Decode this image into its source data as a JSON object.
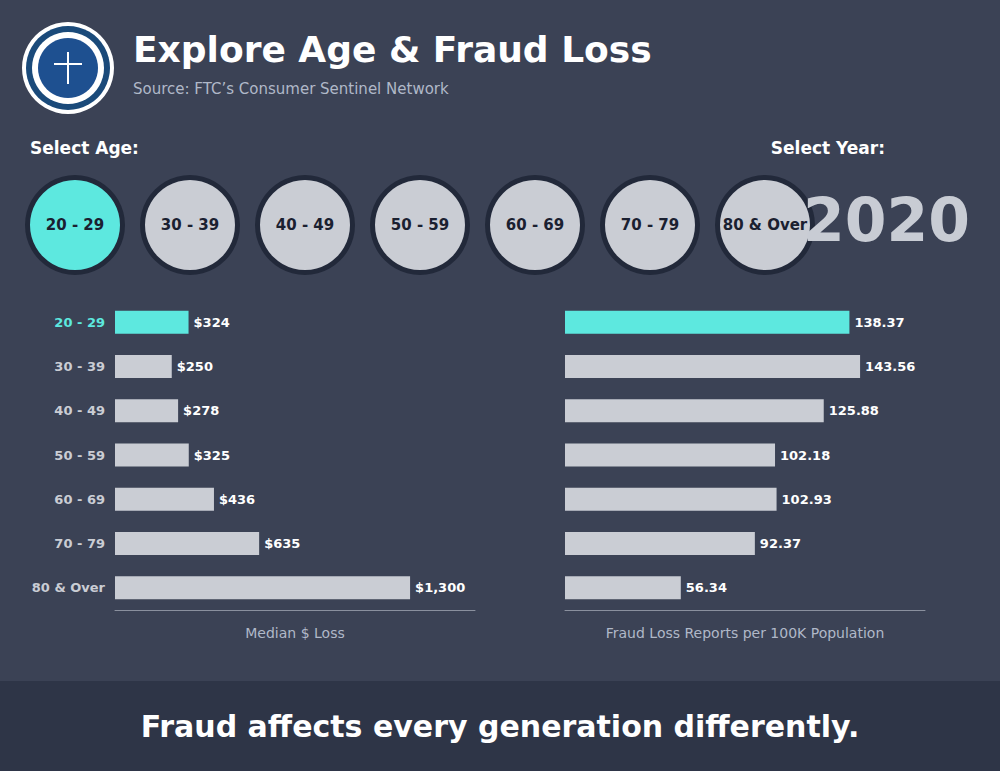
{
  "chart_data": [
    {
      "type": "bar",
      "title": "Explore Age & Fraud Loss",
      "subtitle": "Source: FTC’s Consumer Sentinel Network",
      "annotations": [
        "Select Age:",
        "Select Year:",
        "2020",
        "Fraud affects every generation differently."
      ],
      "orientation": "horizontal",
      "categories": [
        "20 - 29",
        "30 - 39",
        "40 - 49",
        "50 - 59",
        "60 - 69",
        "70 - 79",
        "80 & Over"
      ],
      "values": [
        324,
        250,
        278,
        325,
        436,
        635,
        1300
      ],
      "value_labels": [
        "$324",
        "$250",
        "$278",
        "$325",
        "$436",
        "$635",
        "$1,300"
      ],
      "colors": [
        "#5de8df",
        "#cacdd4",
        "#cacdd4",
        "#cacdd4",
        "#cacdd4",
        "#cacdd4",
        "#cacdd4"
      ],
      "xlabel": "Median $ Loss",
      "xlim": [
        0,
        1586
      ],
      "grid": false,
      "data_labels": true,
      "tick_labels": "y"
    },
    {
      "type": "bar",
      "orientation": "horizontal",
      "categories": [
        "20 - 29",
        "30 - 39",
        "40 - 49",
        "50 - 59",
        "60 - 69",
        "70 - 79",
        "80 & Over"
      ],
      "values": [
        138.37,
        143.56,
        125.88,
        102.18,
        102.93,
        92.37,
        56.34
      ],
      "colors": [
        "#5de8df",
        "#cacdd4",
        "#cacdd4",
        "#cacdd4",
        "#cacdd4",
        "#cacdd4",
        "#cacdd4"
      ],
      "xlabel": "Fraud Loss Reports per 100K Population",
      "xlim": [
        0,
        175.1432
      ],
      "grid": false,
      "data_labels": true,
      "tick_labels": false
    }
  ]
}
